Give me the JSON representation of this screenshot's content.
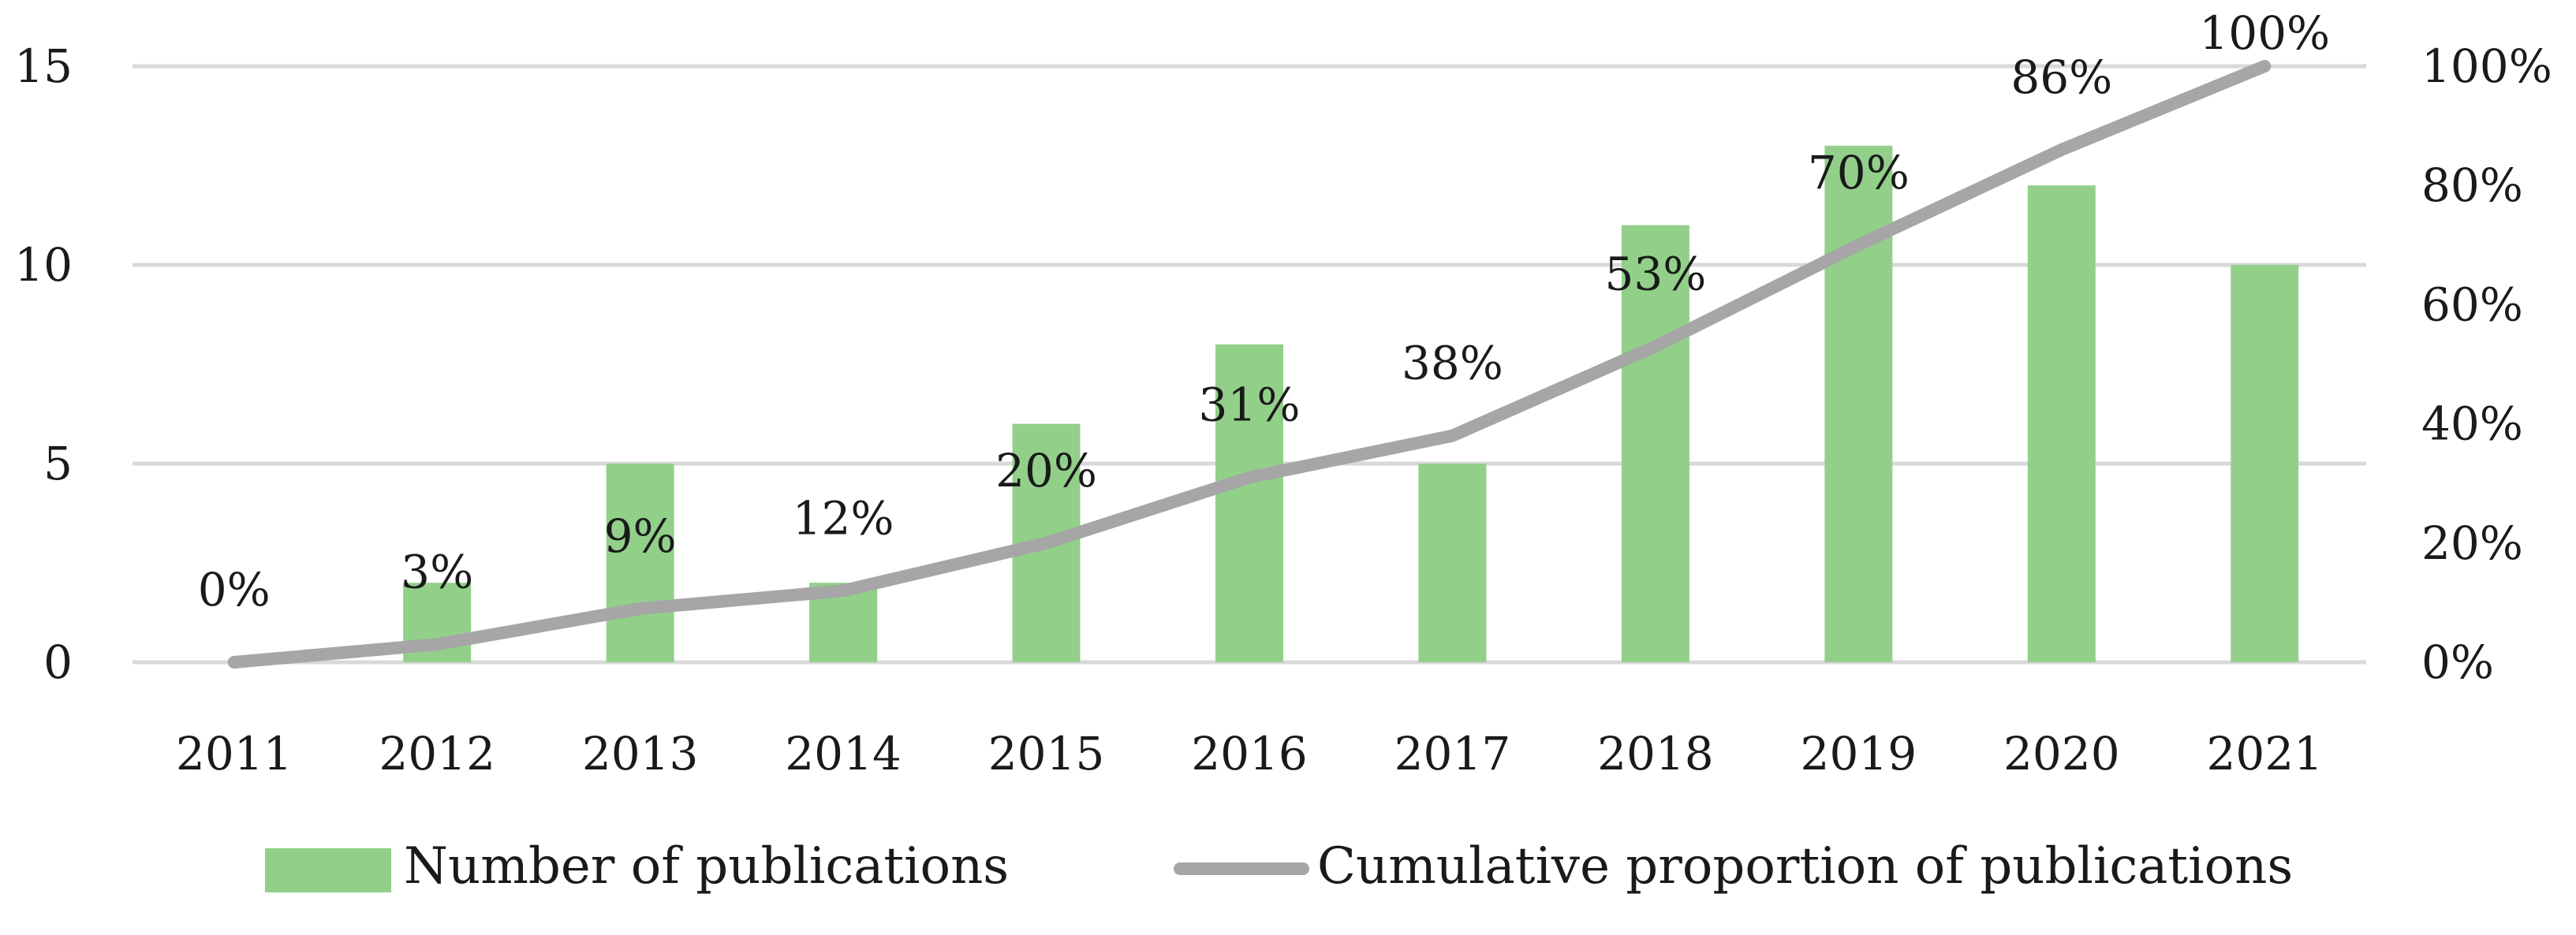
{
  "chart_data": {
    "type": "bar+line",
    "categories": [
      "2011",
      "2012",
      "2013",
      "2014",
      "2015",
      "2016",
      "2017",
      "2018",
      "2019",
      "2020",
      "2021"
    ],
    "series": [
      {
        "name": "Number of publications",
        "type": "bar",
        "axis": "left",
        "color": "#92d08a",
        "values": [
          0,
          2,
          5,
          2,
          6,
          8,
          5,
          11,
          13,
          12,
          10
        ]
      },
      {
        "name": "Cumulative proportion of publications",
        "type": "line",
        "axis": "right",
        "color": "#a6a6a6",
        "values": [
          0,
          3,
          9,
          12,
          20,
          31,
          38,
          53,
          70,
          86,
          100
        ],
        "data_labels": [
          "0%",
          "3%",
          "9%",
          "12%",
          "20%",
          "31%",
          "38%",
          "53%",
          "70%",
          "86%",
          "100%"
        ]
      }
    ],
    "y_left": {
      "min": 0,
      "max": 15,
      "ticks": [
        0,
        5,
        10,
        15
      ],
      "tick_labels": [
        "0",
        "5",
        "10",
        "15"
      ]
    },
    "y_right": {
      "min": 0,
      "max": 100,
      "ticks": [
        0,
        20,
        40,
        60,
        80,
        100
      ],
      "tick_labels": [
        "0%",
        "20%",
        "40%",
        "60%",
        "80%",
        "100%"
      ]
    },
    "grid": true,
    "gridline_color": "#d9d9d9",
    "legend_position": "bottom",
    "title": "",
    "xlabel": "",
    "ylabel": ""
  }
}
